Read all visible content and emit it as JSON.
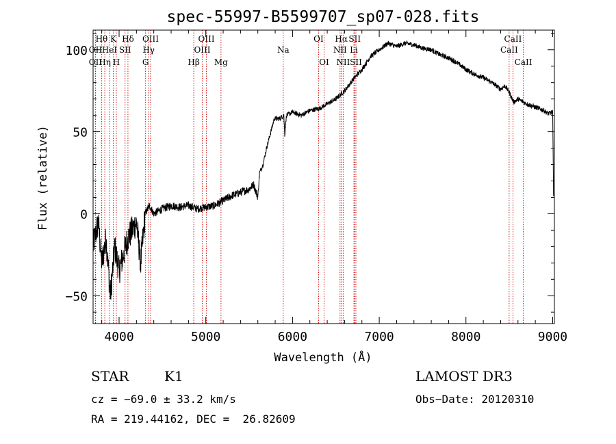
{
  "chart_data": {
    "type": "line",
    "title": "spec-55997-B5599707_sp07-028.fits",
    "xlabel": "Wavelength (Å)",
    "ylabel": "Flux (relative)",
    "xlim": [
      3700,
      9020
    ],
    "ylim": [
      -67,
      112
    ],
    "xticks": [
      4000,
      5000,
      6000,
      7000,
      8000,
      9000
    ],
    "yticks": [
      -50,
      0,
      50,
      100
    ],
    "spectrum_keypoints": [
      [
        3700,
        -20
      ],
      [
        3760,
        -5
      ],
      [
        3800,
        -30
      ],
      [
        3850,
        -15
      ],
      [
        3900,
        -50
      ],
      [
        3950,
        -20
      ],
      [
        4000,
        -35
      ],
      [
        4050,
        -25
      ],
      [
        4100,
        -15
      ],
      [
        4150,
        -10
      ],
      [
        4200,
        -5
      ],
      [
        4250,
        -30
      ],
      [
        4300,
        0
      ],
      [
        4350,
        5
      ],
      [
        4400,
        0
      ],
      [
        4500,
        3
      ],
      [
        4600,
        5
      ],
      [
        4700,
        4
      ],
      [
        4800,
        5
      ],
      [
        4900,
        3
      ],
      [
        5000,
        4
      ],
      [
        5100,
        5
      ],
      [
        5200,
        8
      ],
      [
        5300,
        11
      ],
      [
        5400,
        13
      ],
      [
        5500,
        15
      ],
      [
        5550,
        18
      ],
      [
        5600,
        10
      ],
      [
        5620,
        25
      ],
      [
        5660,
        30
      ],
      [
        5700,
        40
      ],
      [
        5750,
        50
      ],
      [
        5790,
        58
      ],
      [
        5850,
        58
      ],
      [
        5900,
        60
      ],
      [
        5910,
        48
      ],
      [
        5930,
        60
      ],
      [
        6000,
        62
      ],
      [
        6100,
        60
      ],
      [
        6200,
        63
      ],
      [
        6300,
        64
      ],
      [
        6400,
        67
      ],
      [
        6500,
        70
      ],
      [
        6600,
        75
      ],
      [
        6700,
        82
      ],
      [
        6800,
        88
      ],
      [
        6900,
        96
      ],
      [
        7000,
        100
      ],
      [
        7100,
        104
      ],
      [
        7200,
        102
      ],
      [
        7300,
        104
      ],
      [
        7400,
        103
      ],
      [
        7500,
        101
      ],
      [
        7600,
        100
      ],
      [
        7700,
        97
      ],
      [
        7800,
        95
      ],
      [
        7900,
        92
      ],
      [
        8000,
        88
      ],
      [
        8100,
        85
      ],
      [
        8200,
        83
      ],
      [
        8300,
        80
      ],
      [
        8400,
        76
      ],
      [
        8450,
        78
      ],
      [
        8500,
        74
      ],
      [
        8550,
        68
      ],
      [
        8600,
        70
      ],
      [
        8700,
        67
      ],
      [
        8800,
        65
      ],
      [
        8900,
        63
      ],
      [
        8950,
        61
      ],
      [
        9000,
        62
      ],
      [
        9010,
        12
      ]
    ],
    "lines": [
      {
        "label": "Hθ",
        "wl": 3798,
        "row": 1
      },
      {
        "label": "OII",
        "wl": 3727,
        "row": 2
      },
      {
        "label": "OII",
        "wl": 3727,
        "row": 3
      },
      {
        "label": "Hη",
        "wl": 3835,
        "row": 3
      },
      {
        "label": "HeI",
        "wl": 3889,
        "row": 2
      },
      {
        "label": "K",
        "wl": 3934,
        "row": 1
      },
      {
        "label": "H",
        "wl": 3968,
        "row": 3
      },
      {
        "label": "SII",
        "wl": 4069,
        "row": 2
      },
      {
        "label": "Hδ",
        "wl": 4102,
        "row": 1
      },
      {
        "label": "OIII",
        "wl": 4363,
        "row": 1
      },
      {
        "label": "Hγ",
        "wl": 4340,
        "row": 2
      },
      {
        "label": "G",
        "wl": 4305,
        "row": 3
      },
      {
        "label": "Hβ",
        "wl": 4861,
        "row": 3
      },
      {
        "label": "OIII",
        "wl": 5007,
        "row": 1
      },
      {
        "label": "OIII",
        "wl": 4959,
        "row": 2
      },
      {
        "label": "Mg",
        "wl": 5175,
        "row": 3
      },
      {
        "label": "Na",
        "wl": 5893,
        "row": 2
      },
      {
        "label": "OI",
        "wl": 6300,
        "row": 1
      },
      {
        "label": "OI",
        "wl": 6364,
        "row": 3
      },
      {
        "label": "Hα",
        "wl": 6563,
        "row": 1
      },
      {
        "label": "NII",
        "wl": 6548,
        "row": 2
      },
      {
        "label": "NII",
        "wl": 6584,
        "row": 3
      },
      {
        "label": "SII",
        "wl": 6717,
        "row": 1
      },
      {
        "label": "Li",
        "wl": 6708,
        "row": 2
      },
      {
        "label": "SII",
        "wl": 6731,
        "row": 3
      },
      {
        "label": "CaII",
        "wl": 8542,
        "row": 1
      },
      {
        "label": "CaII",
        "wl": 8498,
        "row": 2
      },
      {
        "label": "CaII",
        "wl": 8662,
        "row": 3
      }
    ]
  },
  "info": {
    "class": "STAR",
    "subclass": "K1",
    "survey": "LAMOST DR3",
    "cz": "cz = −69.0 ± 33.2 km/s",
    "obs_date": "Obs−Date: 20120310",
    "coords": "RA = 219.44162, DEC =  26.82609"
  },
  "colors": {
    "spectrum": "#000000",
    "lines": "#cc0000"
  }
}
